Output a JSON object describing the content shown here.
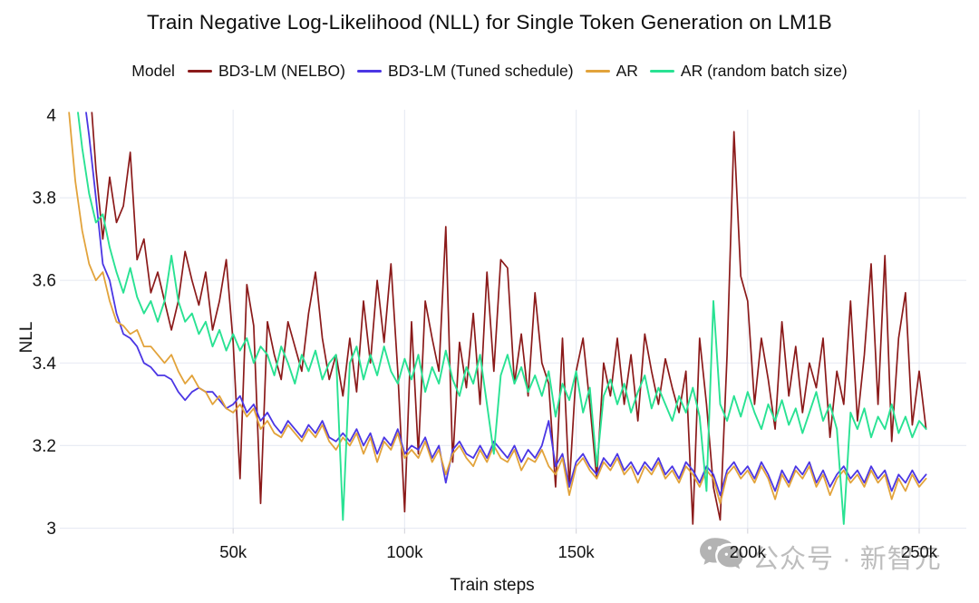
{
  "title": "Train Negative Log-Likelihood (NLL) for Single Token Generation on LM1B",
  "legend": {
    "label": "Model",
    "items": [
      {
        "label": "BD3-LM (NELBO)"
      },
      {
        "label": "BD3-LM (Tuned schedule)"
      },
      {
        "label": "AR"
      },
      {
        "label": "AR (random batch size)"
      }
    ]
  },
  "watermark": {
    "icon": "wechat-icon",
    "text": "公众号 · 新智元"
  },
  "chart_data": {
    "type": "line",
    "title": "Train Negative Log-Likelihood (NLL) for Single Token Generation on LM1B",
    "xlabel": "Train steps",
    "ylabel": "NLL",
    "xlim_k": [
      0,
      263
    ],
    "ylim": [
      3,
      4
    ],
    "x_ticks": [
      {
        "value_k": 50,
        "label": "50k"
      },
      {
        "value_k": 100,
        "label": "100k"
      },
      {
        "value_k": 150,
        "label": "150k"
      },
      {
        "value_k": 200,
        "label": "200k"
      },
      {
        "value_k": 250,
        "label": "250k"
      }
    ],
    "y_ticks": [
      {
        "value": 4,
        "label": "4"
      },
      {
        "value": 3.8,
        "label": "3.8"
      },
      {
        "value": 3.6,
        "label": "3.6"
      },
      {
        "value": 3.4,
        "label": "3.4"
      },
      {
        "value": 3.2,
        "label": "3.2"
      },
      {
        "value": 3,
        "label": "3"
      }
    ],
    "grid": {
      "color": "#e9ecf4",
      "tick_color": "#d8d8df",
      "horizontal": [
        3.8,
        3.6,
        3.4,
        3.2,
        3.0
      ],
      "vertical_k": [
        50,
        100,
        150,
        200,
        250
      ]
    },
    "legend_position": "top",
    "series": [
      {
        "name": "BD3-LM (NELBO)",
        "color": "#8b1a1a",
        "width": 1.7,
        "start_k": 8,
        "step_k": 2,
        "values": [
          4.1,
          3.87,
          3.7,
          3.85,
          3.74,
          3.78,
          3.91,
          3.65,
          3.7,
          3.57,
          3.62,
          3.55,
          3.48,
          3.55,
          3.67,
          3.6,
          3.54,
          3.62,
          3.48,
          3.55,
          3.65,
          3.45,
          3.12,
          3.59,
          3.49,
          3.06,
          3.5,
          3.42,
          3.36,
          3.5,
          3.44,
          3.38,
          3.52,
          3.62,
          3.46,
          3.36,
          3.42,
          3.32,
          3.46,
          3.33,
          3.55,
          3.4,
          3.6,
          3.45,
          3.64,
          3.38,
          3.04,
          3.5,
          3.18,
          3.55,
          3.46,
          3.38,
          3.73,
          3.16,
          3.45,
          3.34,
          3.52,
          3.3,
          3.62,
          3.38,
          3.65,
          3.63,
          3.35,
          3.47,
          3.32,
          3.57,
          3.4,
          3.35,
          3.1,
          3.46,
          3.1,
          3.38,
          3.46,
          3.3,
          3.12,
          3.4,
          3.32,
          3.46,
          3.3,
          3.42,
          3.26,
          3.47,
          3.38,
          3.3,
          3.41,
          3.34,
          3.28,
          3.38,
          3.01,
          3.46,
          3.3,
          3.1,
          3.02,
          3.42,
          3.96,
          3.61,
          3.55,
          3.3,
          3.46,
          3.36,
          3.24,
          3.5,
          3.32,
          3.44,
          3.28,
          3.4,
          3.34,
          3.46,
          3.22,
          3.38,
          3.3,
          3.55,
          3.26,
          3.42,
          3.64,
          3.3,
          3.66,
          3.21,
          3.46,
          3.57,
          3.25,
          3.38,
          3.24
        ]
      },
      {
        "name": "BD3-LM (Tuned schedule)",
        "color": "#4b36e4",
        "width": 1.8,
        "start_k": 6,
        "step_k": 2,
        "values": [
          4.08,
          3.95,
          3.8,
          3.64,
          3.6,
          3.52,
          3.47,
          3.46,
          3.44,
          3.4,
          3.39,
          3.37,
          3.37,
          3.36,
          3.33,
          3.31,
          3.33,
          3.34,
          3.33,
          3.33,
          3.31,
          3.29,
          3.3,
          3.32,
          3.28,
          3.3,
          3.26,
          3.28,
          3.25,
          3.23,
          3.26,
          3.24,
          3.22,
          3.25,
          3.23,
          3.26,
          3.22,
          3.21,
          3.23,
          3.21,
          3.24,
          3.2,
          3.23,
          3.18,
          3.22,
          3.2,
          3.24,
          3.18,
          3.2,
          3.19,
          3.22,
          3.17,
          3.2,
          3.11,
          3.19,
          3.21,
          3.18,
          3.17,
          3.2,
          3.17,
          3.21,
          3.19,
          3.17,
          3.2,
          3.16,
          3.19,
          3.17,
          3.2,
          3.26,
          3.15,
          3.18,
          3.1,
          3.16,
          3.18,
          3.15,
          3.13,
          3.17,
          3.15,
          3.18,
          3.14,
          3.16,
          3.13,
          3.16,
          3.14,
          3.17,
          3.13,
          3.15,
          3.12,
          3.16,
          3.14,
          3.11,
          3.15,
          3.13,
          3.08,
          3.14,
          3.16,
          3.13,
          3.15,
          3.12,
          3.16,
          3.13,
          3.09,
          3.14,
          3.11,
          3.15,
          3.13,
          3.16,
          3.11,
          3.14,
          3.1,
          3.13,
          3.15,
          3.12,
          3.14,
          3.11,
          3.15,
          3.12,
          3.14,
          3.09,
          3.13,
          3.11,
          3.14,
          3.11,
          3.13
        ]
      },
      {
        "name": "AR",
        "color": "#e2a33b",
        "width": 1.8,
        "start_k": 2,
        "step_k": 2,
        "values": [
          4.02,
          3.84,
          3.72,
          3.64,
          3.6,
          3.62,
          3.55,
          3.5,
          3.49,
          3.47,
          3.48,
          3.44,
          3.44,
          3.42,
          3.4,
          3.42,
          3.38,
          3.35,
          3.37,
          3.34,
          3.33,
          3.3,
          3.32,
          3.29,
          3.28,
          3.3,
          3.27,
          3.29,
          3.24,
          3.26,
          3.23,
          3.22,
          3.25,
          3.23,
          3.21,
          3.24,
          3.22,
          3.25,
          3.21,
          3.19,
          3.22,
          3.2,
          3.23,
          3.18,
          3.22,
          3.16,
          3.21,
          3.19,
          3.23,
          3.17,
          3.19,
          3.17,
          3.21,
          3.16,
          3.19,
          3.13,
          3.18,
          3.2,
          3.17,
          3.15,
          3.19,
          3.16,
          3.2,
          3.17,
          3.16,
          3.19,
          3.14,
          3.17,
          3.16,
          3.19,
          3.15,
          3.13,
          3.17,
          3.08,
          3.15,
          3.17,
          3.14,
          3.12,
          3.16,
          3.14,
          3.17,
          3.13,
          3.15,
          3.11,
          3.15,
          3.13,
          3.16,
          3.12,
          3.14,
          3.11,
          3.15,
          3.13,
          3.1,
          3.14,
          3.12,
          3.06,
          3.13,
          3.15,
          3.12,
          3.14,
          3.11,
          3.15,
          3.12,
          3.07,
          3.13,
          3.1,
          3.14,
          3.12,
          3.15,
          3.1,
          3.13,
          3.08,
          3.12,
          3.14,
          3.11,
          3.13,
          3.1,
          3.14,
          3.11,
          3.13,
          3.07,
          3.12,
          3.09,
          3.13,
          3.1,
          3.12
        ]
      },
      {
        "name": "AR (random batch size)",
        "color": "#29e293",
        "width": 1.9,
        "start_k": 4,
        "step_k": 2,
        "values": [
          4.06,
          3.92,
          3.81,
          3.74,
          3.76,
          3.68,
          3.62,
          3.57,
          3.63,
          3.56,
          3.52,
          3.55,
          3.5,
          3.55,
          3.66,
          3.55,
          3.5,
          3.52,
          3.47,
          3.5,
          3.44,
          3.48,
          3.43,
          3.47,
          3.43,
          3.46,
          3.4,
          3.44,
          3.42,
          3.37,
          3.44,
          3.4,
          3.35,
          3.42,
          3.38,
          3.43,
          3.36,
          3.4,
          3.42,
          3.02,
          3.4,
          3.44,
          3.36,
          3.42,
          3.37,
          3.44,
          3.38,
          3.35,
          3.41,
          3.36,
          3.42,
          3.33,
          3.39,
          3.35,
          3.43,
          3.36,
          3.32,
          3.39,
          3.35,
          3.42,
          3.3,
          3.18,
          3.37,
          3.42,
          3.35,
          3.39,
          3.33,
          3.37,
          3.32,
          3.38,
          3.27,
          3.35,
          3.31,
          3.38,
          3.28,
          3.34,
          3.15,
          3.32,
          3.36,
          3.3,
          3.35,
          3.28,
          3.33,
          3.37,
          3.29,
          3.34,
          3.3,
          3.26,
          3.32,
          3.28,
          3.34,
          3.27,
          3.09,
          3.55,
          3.3,
          3.26,
          3.32,
          3.27,
          3.33,
          3.28,
          3.24,
          3.3,
          3.26,
          3.31,
          3.25,
          3.29,
          3.23,
          3.28,
          3.33,
          3.26,
          3.3,
          3.24,
          3.01,
          3.28,
          3.24,
          3.29,
          3.22,
          3.27,
          3.24,
          3.3,
          3.23,
          3.27,
          3.22,
          3.26,
          3.24
        ]
      }
    ]
  }
}
